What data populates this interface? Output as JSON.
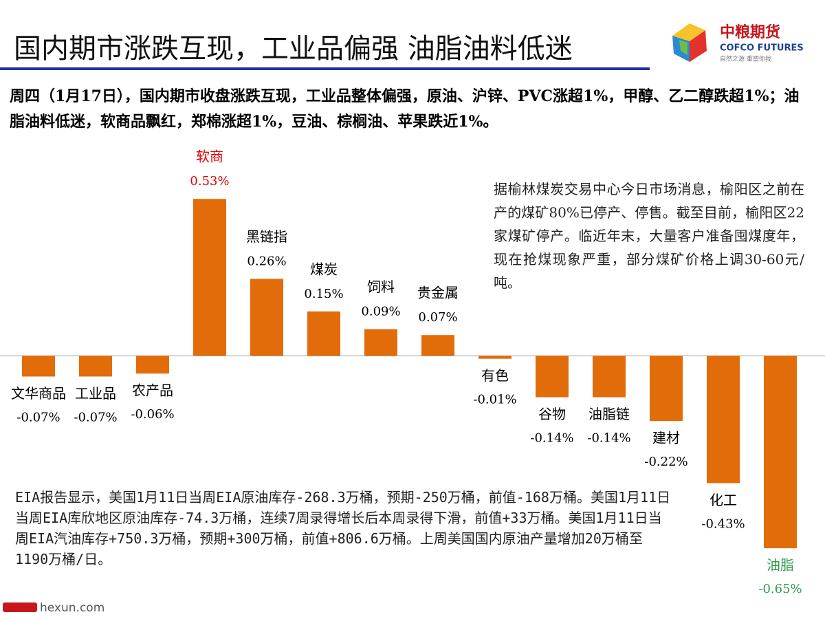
{
  "header": {
    "title": "国内期市涨跌互现，工业品偏强 油脂油料低迷",
    "logo_name": "中粮期货",
    "logo_en": "COFCO FUTURES",
    "logo_slogan": "自然之源 重塑你我"
  },
  "intro": "周四（1月17日），国内期市收盘涨跌互现，工业品整体偏强，原油、沪锌、PVC涨超1%，甲醇、乙二醇跌超1%；油脂油料低迷，软商品飘红，郑棉涨超1%，豆油、棕榈油、苹果跌近1%。",
  "notes": [
    "据榆林煤炭交易中心今日市场消息，榆阳区之前在产的煤矿80%已停产、停售。截至目前，榆阳区22家煤矿停产。临近年末，大量客户准备囤煤度年，现在抢煤现象严重，部分煤矿价格上调30-60元/吨。",
    "EIA报告显示，美国1月11日当周EIA原油库存-268.3万桶，预期-250万桶，前值-168万桶。美国1月11日当周EIA库欣地区原油库存-74.3万桶，连续7周录得增长后本周录得下滑，前值+33万桶。美国1月11日当周EIA汽油库存+750.3万桶，预期+300万桶，前值+806.6万桶。上周美国国内原油产量增加20万桶至1190万桶/日。"
  ],
  "watermark": "hexun.com",
  "chart_data": {
    "type": "bar",
    "categories": [
      "文华商品",
      "工业品",
      "农产品",
      "软商",
      "黑链指",
      "煤炭",
      "饲料",
      "贵金属",
      "有色",
      "谷物",
      "油脂链",
      "建材",
      "化工",
      "油脂"
    ],
    "values": [
      -0.07,
      -0.07,
      -0.06,
      0.53,
      0.26,
      0.15,
      0.09,
      0.07,
      -0.01,
      -0.14,
      -0.14,
      -0.22,
      -0.43,
      -0.65
    ],
    "value_labels": [
      "-0.07%",
      "-0.07%",
      "-0.06%",
      "0.53%",
      "0.26%",
      "0.15%",
      "0.09%",
      "0.07%",
      "-0.01%",
      "-0.14%",
      "-0.14%",
      "-0.22%",
      "-0.43%",
      "-0.65%"
    ],
    "color": "#e36c0a",
    "label_colors": [
      "#000000",
      "#000000",
      "#000000",
      "#e00000",
      "#000000",
      "#000000",
      "#000000",
      "#000000",
      "#000000",
      "#000000",
      "#000000",
      "#000000",
      "#000000",
      "#2e9e4a"
    ],
    "ylim": [
      -0.68,
      0.57
    ]
  }
}
